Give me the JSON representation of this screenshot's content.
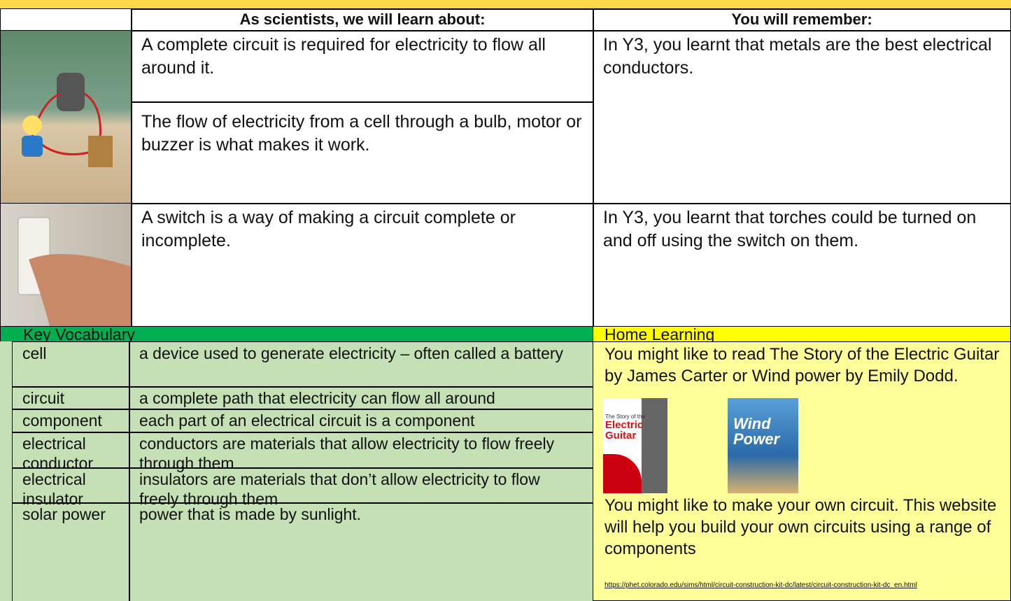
{
  "header": {
    "learn_heading": "As scientists, we will learn about:",
    "remember_heading": "You will remember:"
  },
  "rows": [
    {
      "learn": [
        "A complete circuit is required for electricity to flow all around it.",
        "The flow of electricity from a cell through a bulb, motor or buzzer is what makes it work."
      ],
      "remember": "In Y3, you learnt that metals are the best electrical conductors."
    },
    {
      "learn": [
        "A switch is a way of making a circuit complete or incomplete."
      ],
      "remember": "In Y3, you learnt that torches could be turned on and off using the switch on them."
    }
  ],
  "vocabulary": {
    "heading": "Key Vocabulary",
    "entries": [
      {
        "term": "cell",
        "definition": "a device used to generate electricity – often called a battery"
      },
      {
        "term": "circuit",
        "definition": "a complete path that electricity can flow all around"
      },
      {
        "term": "component",
        "definition": "each part of an electrical circuit is a component"
      },
      {
        "term": "electrical conductor",
        "definition": "conductors are materials that allow electricity to flow freely through them"
      },
      {
        "term": "electrical insulator",
        "definition": "insulators are materials that don’t allow electricity to flow freely through them"
      },
      {
        "term": "solar power",
        "definition": "power that is made by sunlight."
      }
    ]
  },
  "home_learning": {
    "heading": "Home Learning",
    "reading": "You might like to read The Story of the Electric Guitar by James Carter or Wind power by Emily Dodd.",
    "books": [
      {
        "title_small": "The Story of the",
        "title_big": "Electric Guitar"
      },
      {
        "title_big": "Wind Power"
      }
    ],
    "activity": "You might like to make your own circuit. This website will help you build your own circuits using a range of components",
    "link": "https://phet.colorado.edu/sims/html/circuit-construction-kit-dc/latest/circuit-construction-kit-dc_en.html"
  }
}
